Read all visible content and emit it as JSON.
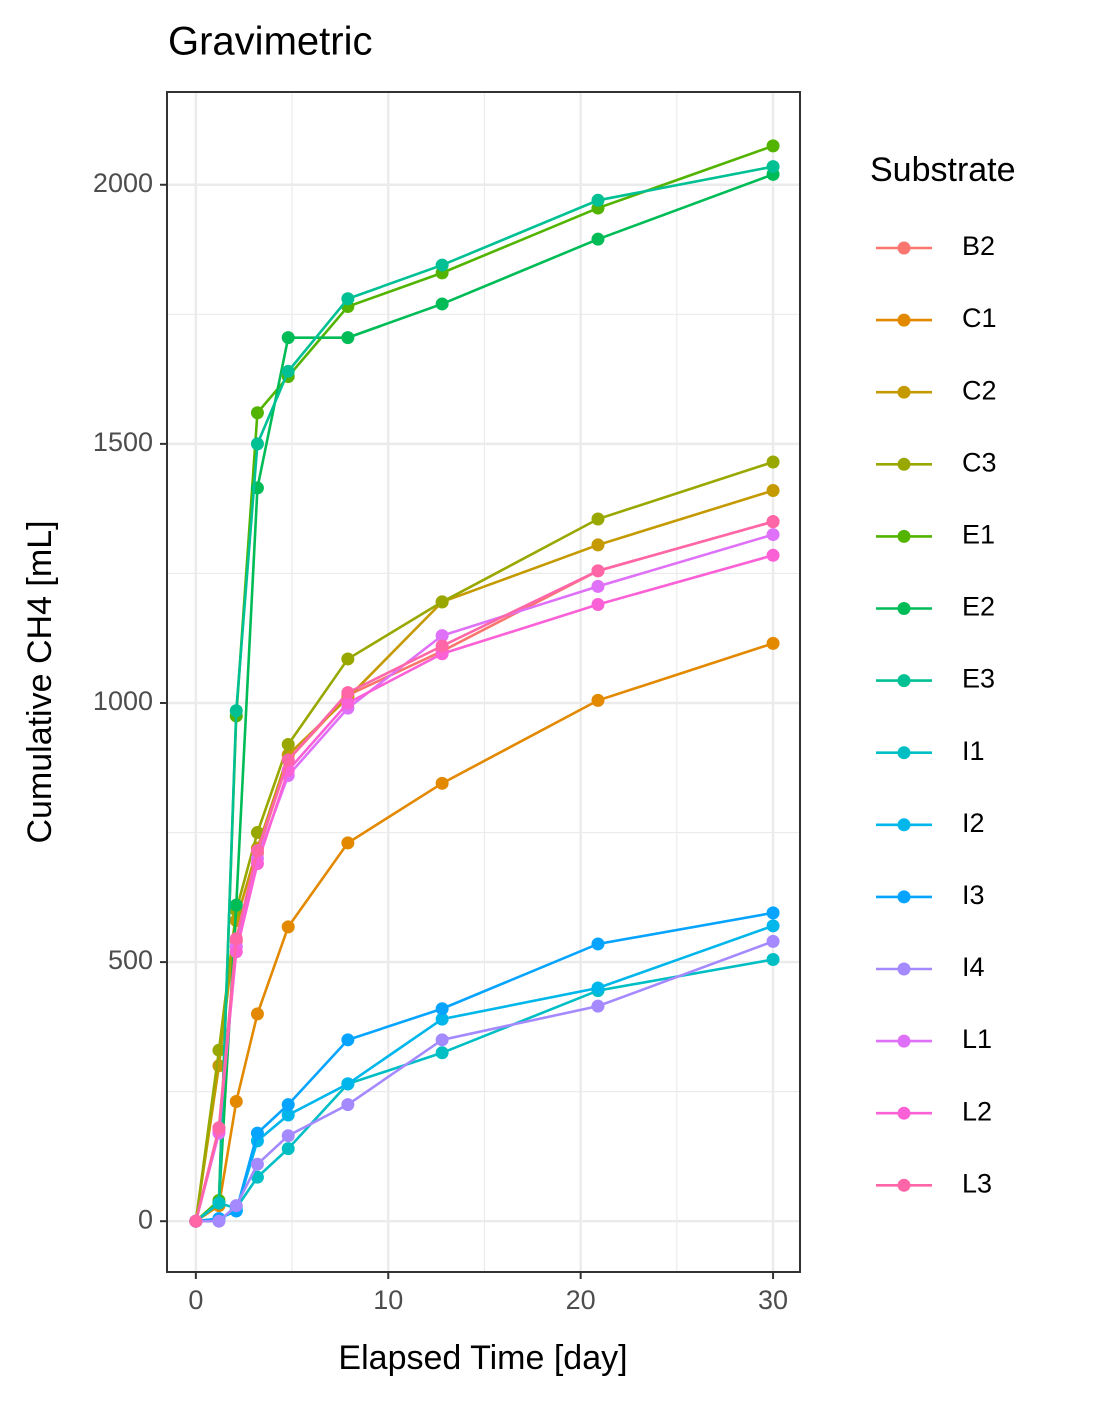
{
  "chart_data": {
    "type": "line",
    "title": "Gravimetric",
    "x_label": "Elapsed Time [day]",
    "y_label": "Cumulative CH4 [mL]",
    "legend_title": "Substrate",
    "x": [
      0,
      1.2,
      2.1,
      3.2,
      4.8,
      7.9,
      12.8,
      20.9,
      30
    ],
    "series": [
      {
        "name": "B2",
        "color": "#F8766D",
        "values": [
          0,
          180,
          540,
          710,
          890,
          1015,
          1100,
          1255,
          1350
        ]
      },
      {
        "name": "C1",
        "color": "#E38900",
        "values": [
          0,
          30,
          231,
          400,
          568,
          730,
          845,
          1005,
          1115
        ]
      },
      {
        "name": "C2",
        "color": "#C49A00",
        "values": [
          0,
          300,
          580,
          720,
          900,
          1010,
          1195,
          1305,
          1410
        ]
      },
      {
        "name": "C3",
        "color": "#99A800",
        "values": [
          0,
          330,
          600,
          750,
          920,
          1085,
          1195,
          1355,
          1465
        ]
      },
      {
        "name": "E1",
        "color": "#53B400",
        "values": [
          0,
          40,
          975,
          1560,
          1630,
          1765,
          1830,
          1955,
          2075
        ]
      },
      {
        "name": "E2",
        "color": "#00BC56",
        "values": [
          0,
          35,
          610,
          1415,
          1705,
          1705,
          1770,
          1895,
          2020
        ]
      },
      {
        "name": "E3",
        "color": "#00C094",
        "values": [
          0,
          35,
          985,
          1500,
          1640,
          1780,
          1845,
          1970,
          2035
        ]
      },
      {
        "name": "I1",
        "color": "#00BFC4",
        "values": [
          0,
          35,
          25,
          85,
          140,
          265,
          325,
          445,
          505
        ]
      },
      {
        "name": "I2",
        "color": "#00B6EB",
        "values": [
          0,
          5,
          20,
          155,
          205,
          265,
          390,
          450,
          570
        ]
      },
      {
        "name": "I3",
        "color": "#06A4FF",
        "values": [
          0,
          5,
          20,
          170,
          225,
          350,
          410,
          535,
          595
        ]
      },
      {
        "name": "I4",
        "color": "#A58AFF",
        "values": [
          0,
          0,
          30,
          110,
          165,
          225,
          350,
          415,
          540
        ]
      },
      {
        "name": "L1",
        "color": "#DF70F8",
        "values": [
          0,
          170,
          530,
          700,
          860,
          990,
          1130,
          1225,
          1325
        ]
      },
      {
        "name": "L2",
        "color": "#FB61D7",
        "values": [
          0,
          175,
          520,
          690,
          870,
          1000,
          1095,
          1190,
          1285
        ]
      },
      {
        "name": "L3",
        "color": "#FF66A8",
        "values": [
          0,
          180,
          545,
          715,
          890,
          1020,
          1110,
          1255,
          1350
        ]
      }
    ],
    "xlim": [
      -1.5,
      31.4
    ],
    "xticks": [
      0,
      10,
      20,
      30
    ],
    "ylim": [
      -98,
      2179
    ],
    "yticks": [
      0,
      500,
      1000,
      1500,
      2000
    ],
    "grid": true,
    "legend_position": "right"
  }
}
